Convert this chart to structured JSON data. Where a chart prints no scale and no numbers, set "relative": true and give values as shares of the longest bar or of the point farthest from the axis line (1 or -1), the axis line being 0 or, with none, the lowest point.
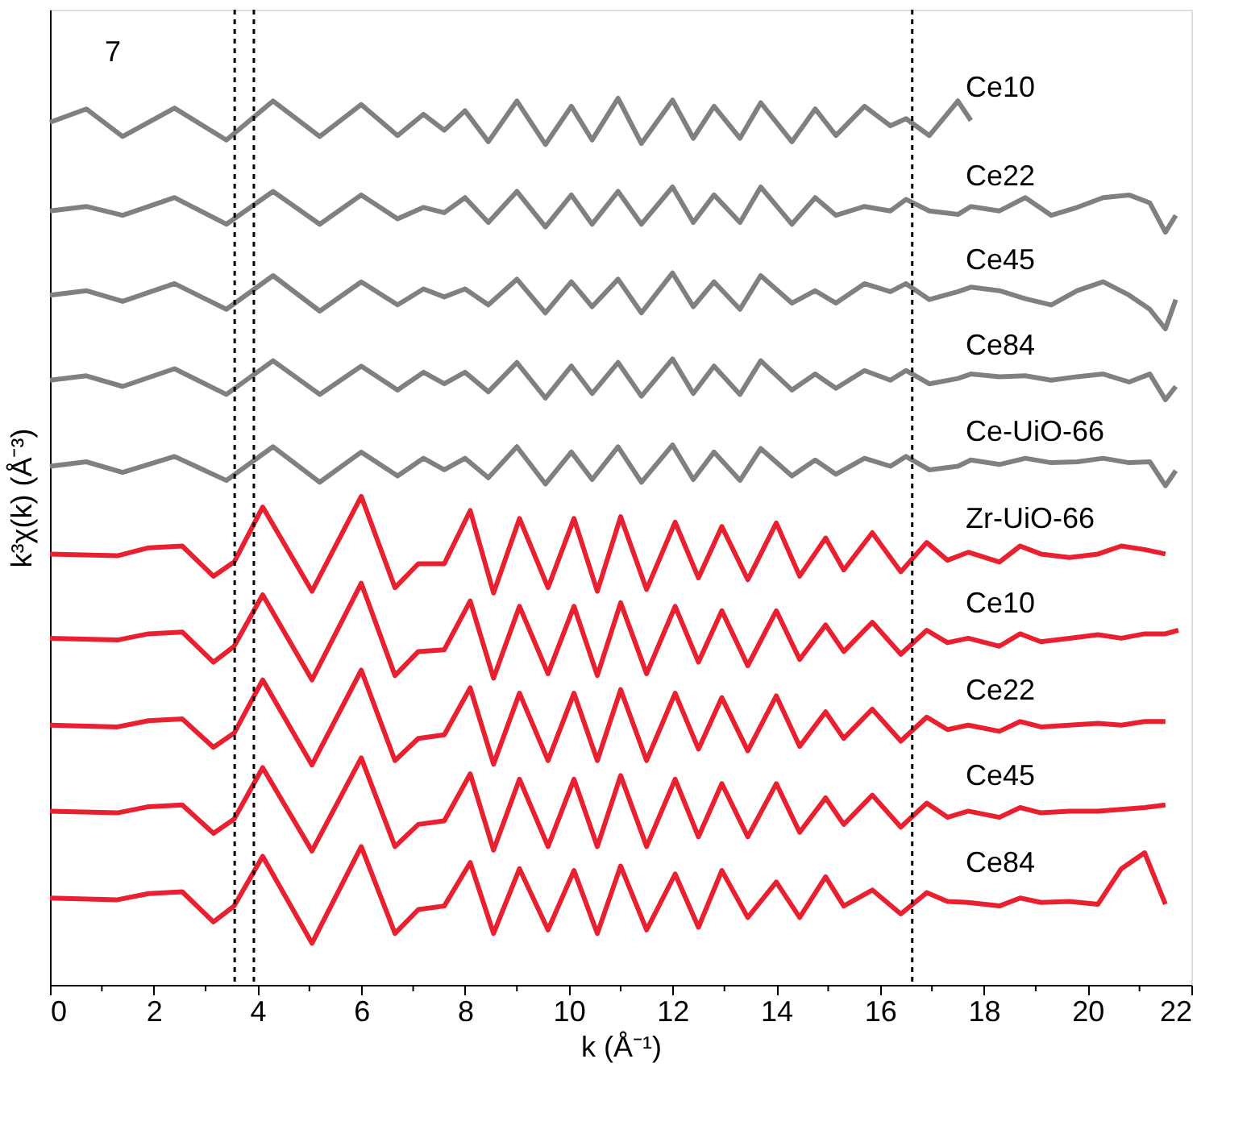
{
  "chart_data": {
    "type": "line",
    "relative": true,
    "xlabel": "k (Å⁻¹)",
    "ylabel": "k³χ(k) (Å⁻³)",
    "annotations": [
      "7"
    ],
    "xlim": [
      0,
      22
    ],
    "xticks": [
      0,
      {
        "value": 1,
        "label": null
      },
      2,
      {
        "value": 3,
        "label": null
      },
      4,
      {
        "value": 5,
        "label": null
      },
      6,
      {
        "value": 7,
        "label": null
      },
      8,
      {
        "value": 9,
        "label": null
      },
      10,
      {
        "value": 11,
        "label": null
      },
      12,
      {
        "value": 13,
        "label": null
      },
      14,
      {
        "value": 15,
        "label": null
      },
      16,
      {
        "value": 17,
        "label": null
      },
      18,
      {
        "value": 19,
        "label": null
      },
      20,
      {
        "value": 21,
        "label": null
      },
      22
    ],
    "tick_labels": "x",
    "grid": false,
    "line_style": "solid",
    "marker": "none",
    "ref_lines": [
      {
        "axis": "x",
        "value": 3.93,
        "color": "#000000",
        "line_style": "dotted"
      },
      {
        "axis": "x",
        "value": 3.56,
        "color": "#000000",
        "line_style": "dotted"
      },
      {
        "axis": "x",
        "value": 16.62,
        "color": "#000000",
        "line_style": "dotted"
      }
    ],
    "series": [
      {
        "name": "Ce10",
        "color": "#808080",
        "x": [
          0,
          0.7,
          1.4,
          2.4,
          3.4,
          4.3,
          5.2,
          6.0,
          6.7,
          7.2,
          7.6,
          8.0,
          8.45,
          9.0,
          9.55,
          10.05,
          10.45,
          10.95,
          11.4,
          12.0,
          12.4,
          12.8,
          13.3,
          13.7,
          14.3,
          14.75,
          15.15,
          15.7,
          16.2,
          16.5,
          16.95,
          17.5,
          17.75
        ],
        "values": [
          0.973,
          0.988,
          0.957,
          0.989,
          0.953,
          0.997,
          0.957,
          0.993,
          0.958,
          0.982,
          0.964,
          0.986,
          0.951,
          0.997,
          0.948,
          0.991,
          0.953,
          1.0,
          0.949,
          0.998,
          0.955,
          0.991,
          0.955,
          0.995,
          0.951,
          0.988,
          0.958,
          0.991,
          0.969,
          0.977,
          0.958,
          0.997,
          0.975
        ]
      },
      {
        "name": "Ce22",
        "color": "#808080",
        "x": [
          0,
          0.7,
          1.4,
          2.4,
          3.4,
          4.3,
          5.2,
          6.0,
          6.7,
          7.2,
          7.6,
          8.0,
          8.45,
          9.0,
          9.55,
          10.05,
          10.45,
          10.95,
          11.4,
          12.0,
          12.4,
          12.8,
          13.3,
          13.7,
          14.3,
          14.75,
          15.15,
          15.7,
          16.2,
          16.5,
          16.95,
          17.5,
          17.75,
          18.3,
          18.8,
          19.3,
          19.8,
          20.3,
          20.8,
          21.2,
          21.5,
          21.7
        ],
        "values": [
          0.873,
          0.878,
          0.868,
          0.888,
          0.858,
          0.895,
          0.858,
          0.891,
          0.864,
          0.877,
          0.871,
          0.888,
          0.86,
          0.895,
          0.855,
          0.891,
          0.858,
          0.895,
          0.858,
          0.9,
          0.86,
          0.891,
          0.86,
          0.9,
          0.858,
          0.888,
          0.868,
          0.878,
          0.873,
          0.886,
          0.873,
          0.869,
          0.878,
          0.873,
          0.888,
          0.868,
          0.877,
          0.888,
          0.891,
          0.882,
          0.849,
          0.868
        ]
      },
      {
        "name": "Ce45",
        "color": "#808080",
        "x": [
          0,
          0.7,
          1.4,
          2.4,
          3.4,
          4.3,
          5.2,
          6.0,
          6.7,
          7.2,
          7.6,
          8.0,
          8.45,
          9.0,
          9.55,
          10.05,
          10.45,
          10.95,
          11.4,
          12.0,
          12.4,
          12.8,
          13.3,
          13.7,
          14.3,
          14.75,
          15.15,
          15.7,
          16.2,
          16.5,
          16.95,
          17.5,
          17.75,
          18.3,
          18.8,
          19.3,
          19.8,
          20.3,
          20.8,
          21.2,
          21.5,
          21.7
        ],
        "values": [
          0.778,
          0.783,
          0.771,
          0.791,
          0.762,
          0.8,
          0.76,
          0.793,
          0.767,
          0.785,
          0.776,
          0.785,
          0.767,
          0.796,
          0.758,
          0.793,
          0.765,
          0.796,
          0.758,
          0.803,
          0.765,
          0.793,
          0.762,
          0.8,
          0.769,
          0.783,
          0.769,
          0.791,
          0.782,
          0.791,
          0.773,
          0.782,
          0.787,
          0.783,
          0.774,
          0.767,
          0.783,
          0.793,
          0.778,
          0.762,
          0.74,
          0.773
        ]
      },
      {
        "name": "Ce84",
        "color": "#808080",
        "x": [
          0,
          0.7,
          1.4,
          2.4,
          3.4,
          4.3,
          5.2,
          6.0,
          6.7,
          7.2,
          7.6,
          8.0,
          8.45,
          9.0,
          9.55,
          10.05,
          10.45,
          10.95,
          11.4,
          12.0,
          12.4,
          12.8,
          13.3,
          13.7,
          14.3,
          14.75,
          15.15,
          15.7,
          16.2,
          16.5,
          16.95,
          17.5,
          17.75,
          18.3,
          18.8,
          19.3,
          19.8,
          20.3,
          20.8,
          21.2,
          21.5,
          21.7
        ],
        "values": [
          0.682,
          0.687,
          0.675,
          0.695,
          0.666,
          0.704,
          0.666,
          0.698,
          0.671,
          0.691,
          0.678,
          0.691,
          0.669,
          0.702,
          0.662,
          0.698,
          0.667,
          0.702,
          0.664,
          0.706,
          0.667,
          0.698,
          0.666,
          0.704,
          0.671,
          0.689,
          0.673,
          0.693,
          0.682,
          0.693,
          0.678,
          0.684,
          0.689,
          0.686,
          0.687,
          0.682,
          0.686,
          0.689,
          0.68,
          0.689,
          0.66,
          0.675
        ]
      },
      {
        "name": "Ce-UiO-66",
        "color": "#808080",
        "x": [
          0,
          0.7,
          1.4,
          2.4,
          3.4,
          4.3,
          5.2,
          6.0,
          6.7,
          7.2,
          7.6,
          8.0,
          8.45,
          9.0,
          9.55,
          10.05,
          10.45,
          10.95,
          11.4,
          12.0,
          12.4,
          12.8,
          13.3,
          13.7,
          14.3,
          14.75,
          15.15,
          15.7,
          16.2,
          16.5,
          16.95,
          17.5,
          17.75,
          18.3,
          18.8,
          19.3,
          19.8,
          20.3,
          20.8,
          21.2,
          21.5,
          21.7
        ],
        "values": [
          0.585,
          0.59,
          0.578,
          0.596,
          0.569,
          0.607,
          0.567,
          0.601,
          0.574,
          0.594,
          0.581,
          0.594,
          0.572,
          0.607,
          0.565,
          0.601,
          0.57,
          0.607,
          0.567,
          0.609,
          0.57,
          0.601,
          0.569,
          0.605,
          0.574,
          0.592,
          0.576,
          0.594,
          0.585,
          0.596,
          0.581,
          0.585,
          0.592,
          0.587,
          0.594,
          0.589,
          0.59,
          0.594,
          0.589,
          0.59,
          0.563,
          0.58
        ]
      },
      {
        "name": "Zr-UiO-66",
        "color": "#e8202f",
        "x": [
          0,
          1.3,
          1.9,
          2.55,
          3.15,
          3.55,
          4.1,
          5.05,
          6.0,
          6.65,
          7.1,
          7.6,
          8.1,
          8.55,
          9.05,
          9.6,
          10.1,
          10.55,
          11.0,
          11.5,
          12.05,
          12.5,
          12.95,
          13.45,
          14.0,
          14.45,
          14.95,
          15.3,
          15.85,
          16.4,
          16.9,
          17.3,
          17.7,
          18.3,
          18.7,
          19.1,
          19.65,
          20.2,
          20.65,
          21.1,
          21.5
        ],
        "values": [
          0.486,
          0.484,
          0.493,
          0.495,
          0.461,
          0.477,
          0.539,
          0.444,
          0.551,
          0.448,
          0.475,
          0.475,
          0.535,
          0.442,
          0.526,
          0.448,
          0.526,
          0.444,
          0.528,
          0.446,
          0.522,
          0.459,
          0.517,
          0.457,
          0.521,
          0.461,
          0.504,
          0.468,
          0.51,
          0.466,
          0.499,
          0.479,
          0.488,
          0.477,
          0.495,
          0.486,
          0.482,
          0.486,
          0.495,
          0.491,
          0.486
        ]
      },
      {
        "name": "Ce10",
        "color": "#e8202f",
        "x": [
          0,
          1.3,
          1.9,
          2.55,
          3.15,
          3.55,
          4.1,
          5.05,
          6.0,
          6.65,
          7.1,
          7.6,
          8.1,
          8.55,
          9.05,
          9.6,
          10.1,
          10.55,
          11.0,
          11.5,
          12.05,
          12.5,
          12.95,
          13.45,
          14.0,
          14.45,
          14.95,
          15.3,
          15.85,
          16.4,
          16.9,
          17.3,
          17.7,
          18.3,
          18.7,
          19.1,
          19.65,
          20.2,
          20.65,
          21.1,
          21.5,
          21.75
        ],
        "values": [
          0.391,
          0.389,
          0.396,
          0.398,
          0.364,
          0.382,
          0.44,
          0.344,
          0.453,
          0.349,
          0.376,
          0.378,
          0.433,
          0.346,
          0.427,
          0.351,
          0.427,
          0.349,
          0.431,
          0.351,
          0.427,
          0.364,
          0.422,
          0.36,
          0.422,
          0.367,
          0.406,
          0.376,
          0.409,
          0.373,
          0.4,
          0.386,
          0.391,
          0.382,
          0.396,
          0.387,
          0.391,
          0.395,
          0.391,
          0.396,
          0.396,
          0.4
        ]
      },
      {
        "name": "Ce22",
        "color": "#e8202f",
        "x": [
          0,
          1.3,
          1.9,
          2.55,
          3.15,
          3.55,
          4.1,
          5.05,
          6.0,
          6.65,
          7.1,
          7.6,
          8.1,
          8.55,
          9.05,
          9.6,
          10.1,
          10.55,
          11.0,
          11.5,
          12.05,
          12.5,
          12.95,
          13.45,
          14.0,
          14.45,
          14.95,
          15.3,
          15.85,
          16.4,
          16.9,
          17.3,
          17.7,
          18.3,
          18.7,
          19.1,
          19.65,
          20.2,
          20.65,
          21.1,
          21.5
        ],
        "values": [
          0.293,
          0.291,
          0.298,
          0.3,
          0.268,
          0.284,
          0.344,
          0.248,
          0.355,
          0.253,
          0.278,
          0.282,
          0.335,
          0.249,
          0.329,
          0.253,
          0.329,
          0.253,
          0.333,
          0.253,
          0.329,
          0.266,
          0.324,
          0.264,
          0.326,
          0.269,
          0.308,
          0.278,
          0.311,
          0.275,
          0.302,
          0.288,
          0.293,
          0.286,
          0.297,
          0.291,
          0.293,
          0.295,
          0.293,
          0.297,
          0.297
        ]
      },
      {
        "name": "Ce45",
        "color": "#e8202f",
        "x": [
          0,
          1.3,
          1.9,
          2.55,
          3.15,
          3.55,
          4.1,
          5.05,
          6.0,
          6.65,
          7.1,
          7.6,
          8.1,
          8.55,
          9.05,
          9.6,
          10.1,
          10.55,
          11.0,
          11.5,
          12.05,
          12.5,
          12.95,
          13.45,
          14.0,
          14.45,
          14.95,
          15.3,
          15.85,
          16.4,
          16.9,
          17.3,
          17.7,
          18.3,
          18.7,
          19.1,
          19.65,
          20.2,
          20.65,
          21.1,
          21.5
        ],
        "values": [
          0.196,
          0.194,
          0.201,
          0.203,
          0.171,
          0.187,
          0.245,
          0.151,
          0.256,
          0.156,
          0.181,
          0.185,
          0.238,
          0.152,
          0.232,
          0.156,
          0.232,
          0.156,
          0.236,
          0.156,
          0.232,
          0.167,
          0.227,
          0.167,
          0.227,
          0.172,
          0.211,
          0.181,
          0.214,
          0.178,
          0.205,
          0.189,
          0.196,
          0.189,
          0.2,
          0.194,
          0.196,
          0.196,
          0.198,
          0.2,
          0.203
        ]
      },
      {
        "name": "Ce84",
        "color": "#e8202f",
        "x": [
          0,
          1.3,
          1.9,
          2.55,
          3.15,
          3.55,
          4.1,
          5.05,
          6.0,
          6.65,
          7.1,
          7.6,
          8.1,
          8.55,
          9.05,
          9.6,
          10.1,
          10.55,
          11.0,
          11.5,
          12.05,
          12.5,
          12.95,
          13.45,
          14.0,
          14.45,
          14.95,
          15.3,
          15.85,
          16.4,
          16.9,
          17.3,
          17.7,
          18.3,
          18.7,
          19.1,
          19.65,
          20.2,
          20.65,
          21.1,
          21.5
        ],
        "values": [
          0.098,
          0.096,
          0.103,
          0.105,
          0.071,
          0.089,
          0.145,
          0.047,
          0.156,
          0.058,
          0.085,
          0.089,
          0.138,
          0.058,
          0.131,
          0.062,
          0.129,
          0.058,
          0.134,
          0.062,
          0.125,
          0.065,
          0.129,
          0.076,
          0.116,
          0.076,
          0.122,
          0.089,
          0.107,
          0.08,
          0.104,
          0.094,
          0.093,
          0.089,
          0.098,
          0.093,
          0.094,
          0.091,
          0.131,
          0.149,
          0.091
        ]
      }
    ]
  }
}
